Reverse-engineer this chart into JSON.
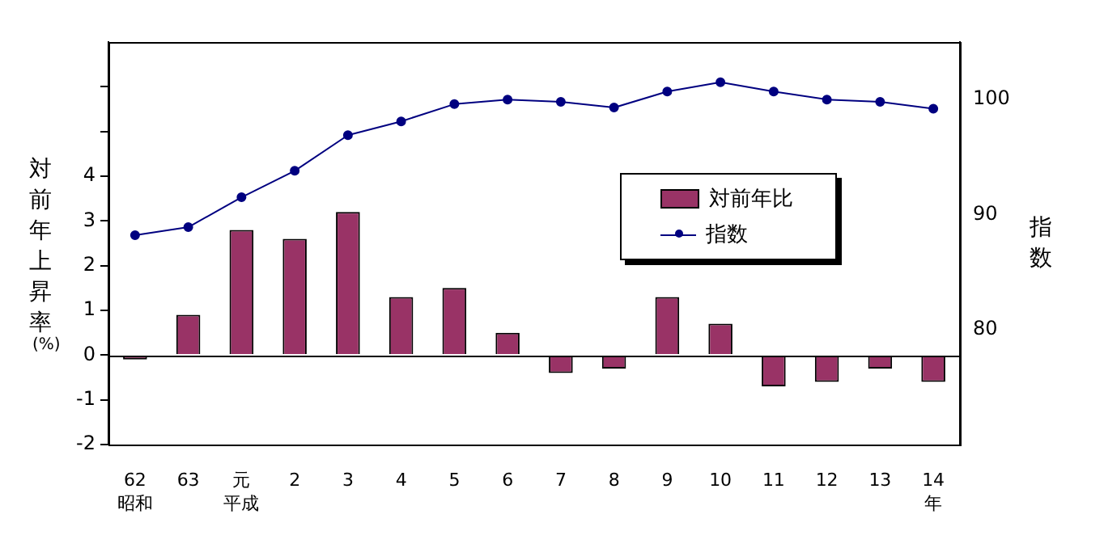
{
  "chart_data": {
    "type": "bar",
    "categories": [
      "62",
      "63",
      "元",
      "2",
      "3",
      "4",
      "5",
      "6",
      "7",
      "8",
      "9",
      "10",
      "11",
      "12",
      "13",
      "14"
    ],
    "series": [
      {
        "name": "対前年比",
        "color": "#993366",
        "values": [
          -0.1,
          0.9,
          2.8,
          2.6,
          3.2,
          1.3,
          1.5,
          0.5,
          -0.4,
          -0.3,
          1.3,
          0.7,
          -0.7,
          -0.6,
          -0.3,
          -0.6
        ]
      },
      {
        "name": "指数",
        "type": "line",
        "axis": "y2",
        "color": "#000080",
        "values": [
          88.2,
          88.9,
          91.5,
          93.8,
          96.9,
          98.1,
          99.6,
          100.0,
          99.8,
          99.3,
          100.7,
          101.5,
          100.7,
          100.0,
          99.8,
          99.2
        ]
      }
    ],
    "ylim": [
      -2,
      7
    ],
    "yticks": [
      -2,
      -1,
      0,
      1,
      2,
      3,
      4,
      {
        "value": 5,
        "label": null
      },
      {
        "value": 6,
        "label": null
      }
    ],
    "y2lim": [
      70,
      105
    ],
    "y2ticks": [
      80,
      90,
      100
    ],
    "ylabel": "対前年上昇率",
    "y2label": "指数",
    "annotations": [
      "(%)",
      "昭和",
      "平成",
      "年"
    ],
    "legend": "right",
    "marker": "circle",
    "line_style": "solid"
  }
}
